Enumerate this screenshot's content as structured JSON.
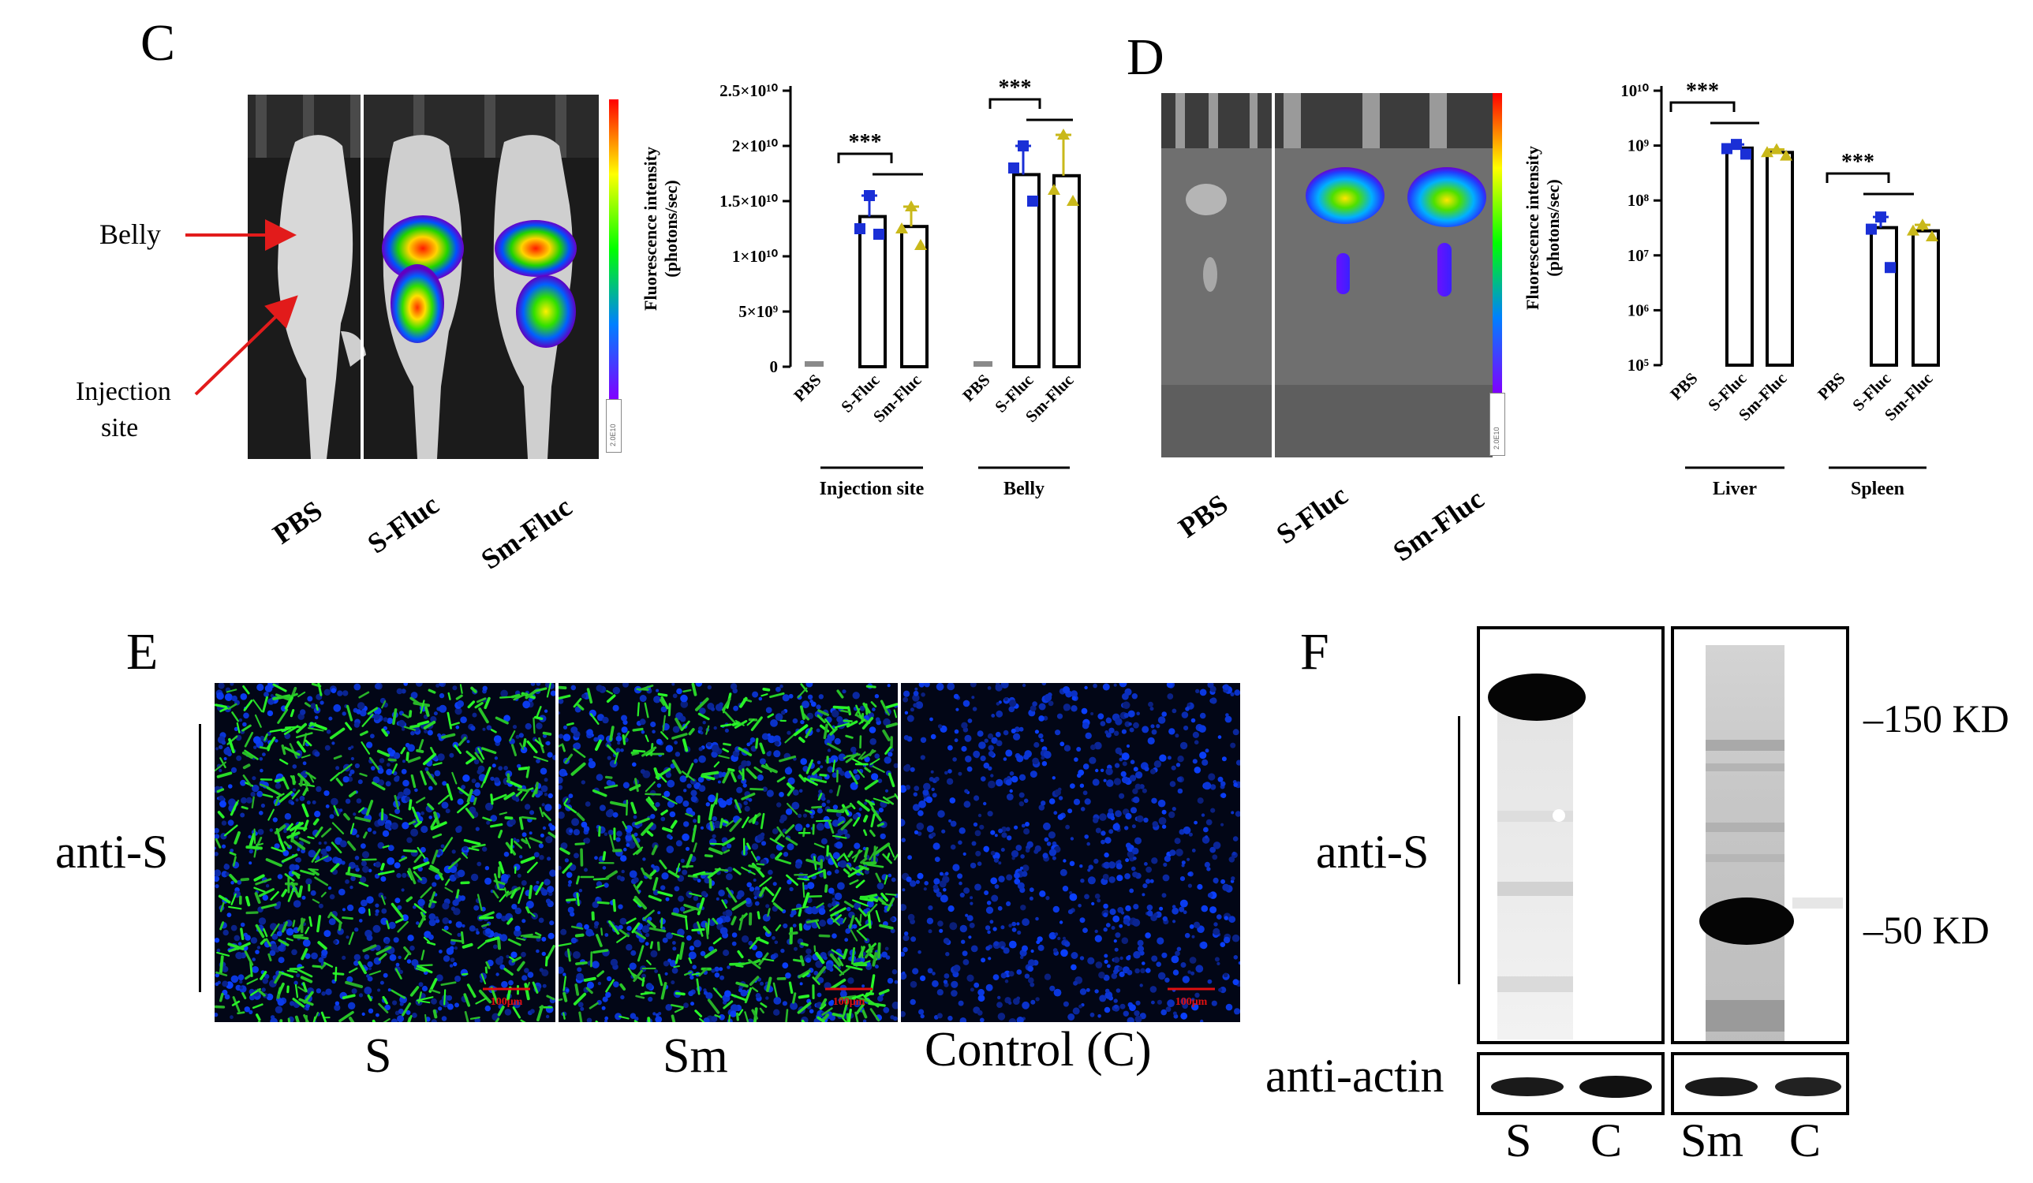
{
  "panel_c": {
    "letter": "C",
    "annot_belly": "Belly",
    "annot_injection_1": "Injection",
    "annot_injection_2": "site",
    "mouse_labels": [
      "PBS",
      "S-Fluc",
      "Sm-Fluc"
    ],
    "colorbar_tick": "2.0E10"
  },
  "panel_d": {
    "letter": "D",
    "organ_labels": [
      "PBS",
      "S-Fluc",
      "Sm-Fluc"
    ],
    "colorbar_tick": "2.0E10"
  },
  "chart_c": {
    "chart_data": {
      "type": "bar",
      "ylabel": "Fluorescence intensity",
      "ylabel_unit": "(photons/sec)",
      "ylim": [
        0,
        25000000000.0
      ],
      "yticks": [
        "0",
        "5×10⁹",
        "1×10¹⁰",
        "1.5×10¹⁰",
        "2×10¹⁰",
        "2.5×10¹⁰"
      ],
      "groups": [
        "Injection site",
        "Belly"
      ],
      "categories": [
        "PBS",
        "S-Fluc",
        "Sm-Fluc",
        "PBS",
        "S-Fluc",
        "Sm-Fluc"
      ],
      "values": [
        0,
        13600000000.0,
        12700000000.0,
        0,
        17400000000.0,
        17300000000.0
      ],
      "errors": [
        0,
        2500000000.0,
        2200000000.0,
        0,
        2800000000.0,
        3500000000.0
      ],
      "points": {
        "injection_site_s_fluc": [
          15500000000.0,
          12500000000.0,
          12000000000.0
        ],
        "injection_site_sm_fluc": [
          14500000000.0,
          12500000000.0,
          11000000000.0
        ],
        "belly_s_fluc": [
          20000000000.0,
          18000000000.0,
          15000000000.0
        ],
        "belly_sm_fluc": [
          21000000000.0,
          16000000000.0,
          15000000000.0
        ]
      },
      "significance": "***"
    }
  },
  "chart_d": {
    "chart_data": {
      "type": "bar",
      "scale": "log",
      "ylabel": "Fluorescence intensity",
      "ylabel_unit": "(photons/sec)",
      "ylim": [
        100000.0,
        10000000000.0
      ],
      "yticks": [
        "10⁵",
        "10⁶",
        "10⁷",
        "10⁸",
        "10⁹",
        "10¹⁰"
      ],
      "groups": [
        "Liver",
        "Spleen"
      ],
      "categories": [
        "PBS",
        "S-Fluc",
        "Sm-Fluc",
        "PBS",
        "S-Fluc",
        "Sm-Fluc"
      ],
      "values": [
        0,
        900000000.0,
        750000000.0,
        0,
        32000000.0,
        28000000.0
      ],
      "points": {
        "liver_s_fluc": [
          1050000000.0,
          880000000.0,
          700000000.0
        ],
        "liver_sm_fluc": [
          850000000.0,
          750000000.0,
          650000000.0
        ],
        "spleen_s_fluc": [
          50000000.0,
          30000000.0,
          6000000.0
        ],
        "spleen_sm_fluc": [
          36000000.0,
          28000000.0,
          22000000.0
        ]
      },
      "significance": "***"
    }
  },
  "panel_e": {
    "letter": "E",
    "row_label": "anti-S",
    "columns": [
      "S",
      "Sm",
      "Control (C)"
    ],
    "scale_bar": "100μm"
  },
  "panel_f": {
    "letter": "F",
    "row_label_top": "anti-S",
    "row_label_bottom": "anti-actin",
    "marker_150": "–150 KD",
    "marker_50": "–50 KD",
    "lanes": [
      "S",
      "C",
      "Sm",
      "C"
    ]
  }
}
